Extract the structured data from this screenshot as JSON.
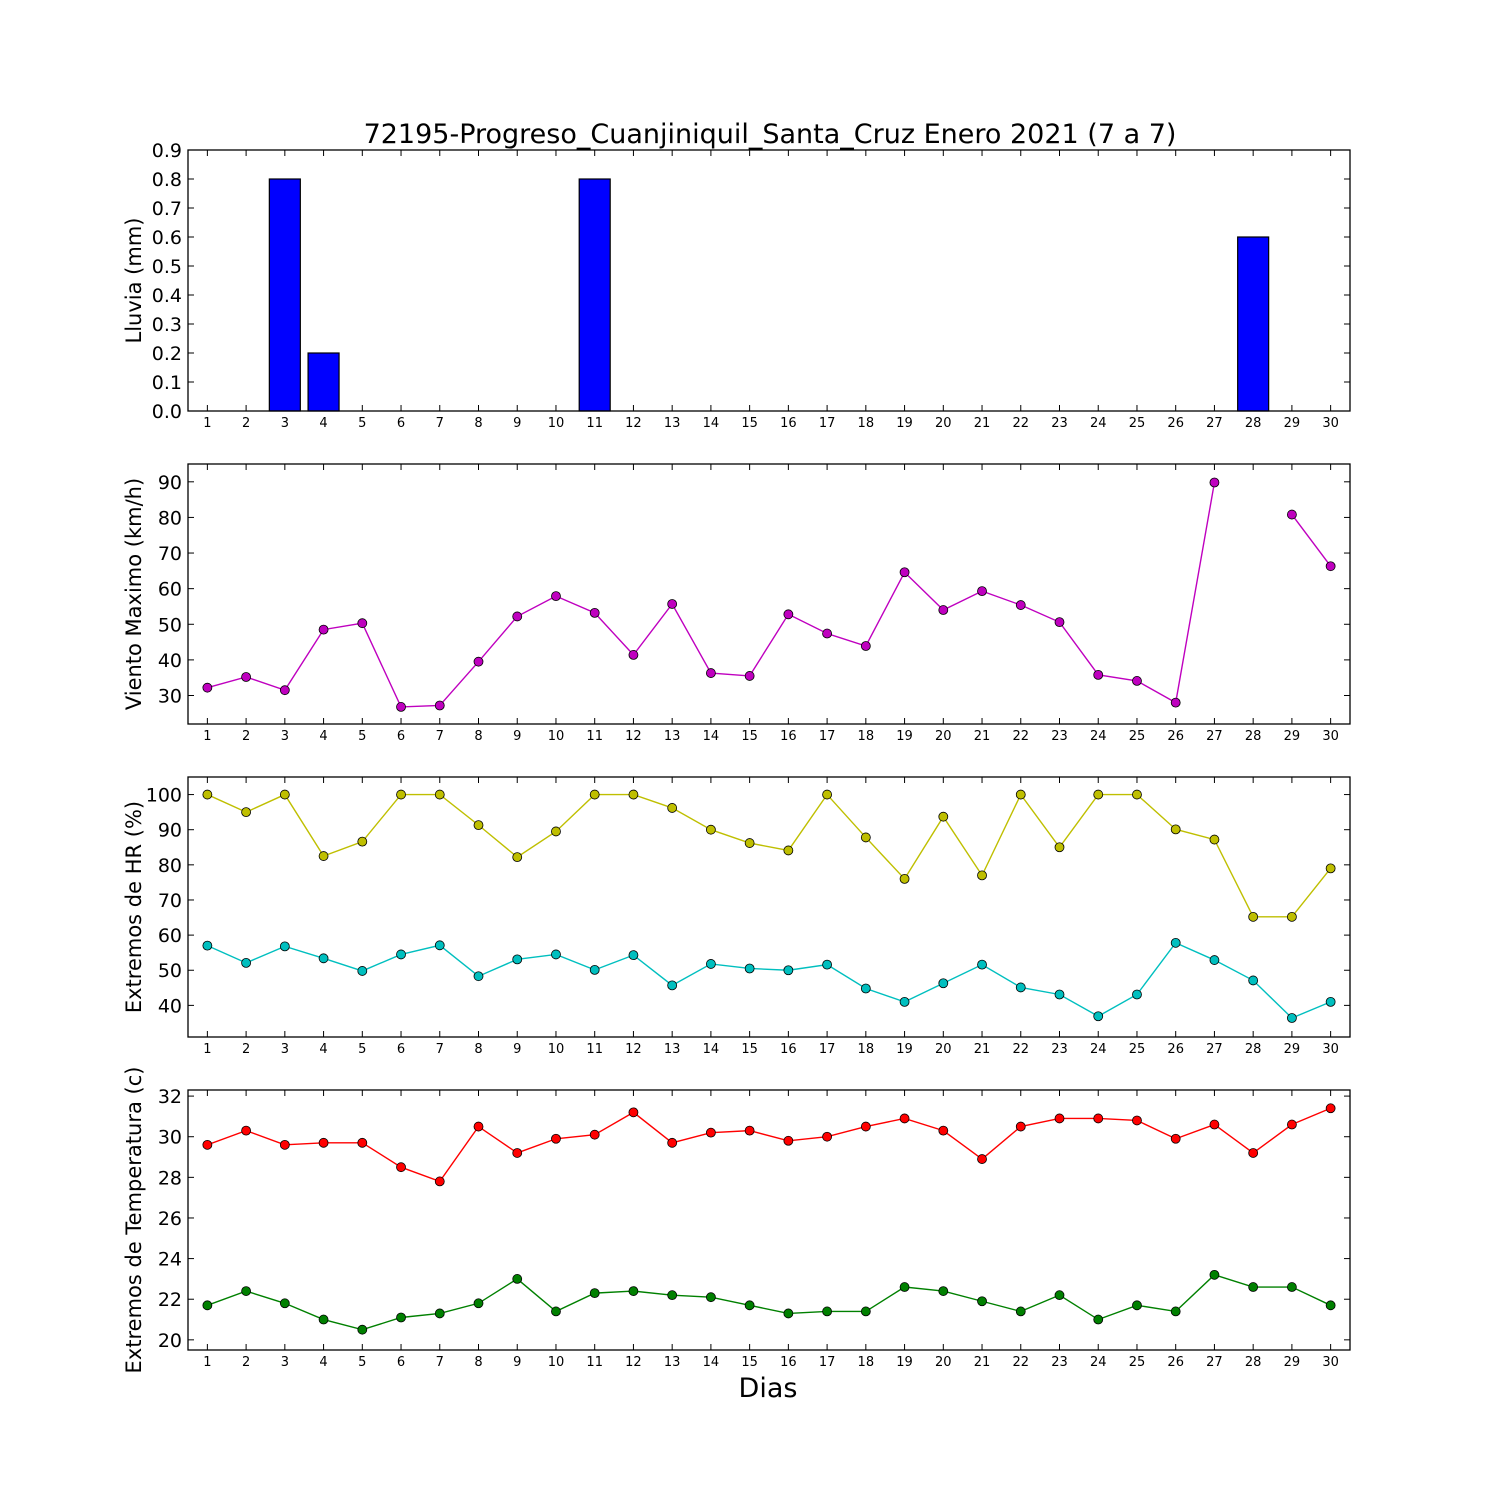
{
  "title": "72195-Progreso_Cuanjiniquil_Santa_Cruz Enero 2021  (7 a 7)",
  "xlabel": "Dias",
  "colors": {
    "rain": "#0000ff",
    "wind": "#bf00bf",
    "hr_max": "#bfbf00",
    "hr_min": "#00bfbf",
    "temp_max": "#ff0000",
    "temp_min": "#008000"
  },
  "chart_data": [
    {
      "type": "bar",
      "ylabel": "Lluvia (mm)",
      "x": [
        1,
        2,
        3,
        4,
        5,
        6,
        7,
        8,
        9,
        10,
        11,
        12,
        13,
        14,
        15,
        16,
        17,
        18,
        19,
        20,
        21,
        22,
        23,
        24,
        25,
        26,
        27,
        28,
        29,
        30
      ],
      "ylim": [
        0,
        0.9
      ],
      "yticks": [
        0.0,
        0.1,
        0.2,
        0.3,
        0.4,
        0.5,
        0.6,
        0.7,
        0.8,
        0.9
      ],
      "series": [
        {
          "values": [
            0,
            0,
            0.8,
            0.2,
            0,
            0,
            0,
            0,
            0,
            0,
            0.8,
            0,
            0,
            0,
            0,
            0,
            0,
            0,
            0,
            0,
            0,
            0,
            0,
            0,
            0,
            0,
            0,
            0.6,
            0,
            0
          ]
        }
      ]
    },
    {
      "type": "line",
      "ylabel": "Viento Maximo (km/h)",
      "x": [
        1,
        2,
        3,
        4,
        5,
        6,
        7,
        8,
        9,
        10,
        11,
        12,
        13,
        14,
        15,
        16,
        17,
        18,
        19,
        20,
        21,
        22,
        23,
        24,
        25,
        26,
        27,
        28,
        29,
        30
      ],
      "ylim": [
        22,
        95
      ],
      "yticks": [
        30,
        40,
        50,
        60,
        70,
        80,
        90
      ],
      "series": [
        {
          "values": [
            32.2,
            35.2,
            31.5,
            48.5,
            50.3,
            26.8,
            27.2,
            39.5,
            52.2,
            57.9,
            53.2,
            41.4,
            55.7,
            36.3,
            35.5,
            52.8,
            47.4,
            43.9,
            64.6,
            54.0,
            59.3,
            55.4,
            50.6,
            35.8,
            34.1,
            28.0,
            89.8,
            null,
            80.8,
            66.3
          ]
        }
      ]
    },
    {
      "type": "line",
      "ylabel": "Extremos de HR (%)",
      "x": [
        1,
        2,
        3,
        4,
        5,
        6,
        7,
        8,
        9,
        10,
        11,
        12,
        13,
        14,
        15,
        16,
        17,
        18,
        19,
        20,
        21,
        22,
        23,
        24,
        25,
        26,
        27,
        28,
        29,
        30
      ],
      "ylim": [
        31,
        105
      ],
      "yticks": [
        40,
        50,
        60,
        70,
        80,
        90,
        100
      ],
      "series": [
        {
          "values": [
            100,
            95,
            100,
            82.5,
            86.6,
            100,
            100,
            91.3,
            82.2,
            89.5,
            100,
            100,
            96.2,
            90,
            86.2,
            84.1,
            100,
            87.8,
            76,
            93.7,
            77,
            100,
            85,
            100,
            100,
            90.1,
            87.2,
            65.2,
            65.2,
            79
          ]
        },
        {
          "values": [
            57,
            52.1,
            56.8,
            53.4,
            49.8,
            54.5,
            57.1,
            48.3,
            53.1,
            54.5,
            50.1,
            54.3,
            45.7,
            51.8,
            50.5,
            50,
            51.6,
            44.8,
            41,
            46.3,
            51.6,
            45.1,
            43.1,
            36.9,
            43.1,
            57.8,
            52.9,
            47.1,
            36.4,
            41
          ]
        }
      ]
    },
    {
      "type": "line",
      "ylabel": "Extremos de Temperatura (c)",
      "x": [
        1,
        2,
        3,
        4,
        5,
        6,
        7,
        8,
        9,
        10,
        11,
        12,
        13,
        14,
        15,
        16,
        17,
        18,
        19,
        20,
        21,
        22,
        23,
        24,
        25,
        26,
        27,
        28,
        29,
        30
      ],
      "ylim": [
        19.5,
        32.3
      ],
      "yticks": [
        20,
        22,
        24,
        26,
        28,
        30,
        32
      ],
      "series": [
        {
          "values": [
            29.6,
            30.3,
            29.6,
            29.7,
            29.7,
            28.5,
            27.8,
            30.5,
            29.2,
            29.9,
            30.1,
            31.2,
            29.7,
            30.2,
            30.3,
            29.8,
            30.0,
            30.5,
            30.9,
            30.3,
            28.9,
            30.5,
            30.9,
            30.9,
            30.8,
            29.9,
            30.6,
            29.2,
            30.6,
            31.4
          ]
        },
        {
          "values": [
            21.7,
            22.4,
            21.8,
            21.0,
            20.5,
            21.1,
            21.3,
            21.8,
            23.0,
            21.4,
            22.3,
            22.4,
            22.2,
            22.1,
            21.7,
            21.3,
            21.4,
            21.4,
            22.6,
            22.4,
            21.9,
            21.4,
            22.2,
            21.0,
            21.7,
            21.4,
            23.2,
            22.6,
            22.6,
            21.7
          ]
        }
      ]
    }
  ]
}
